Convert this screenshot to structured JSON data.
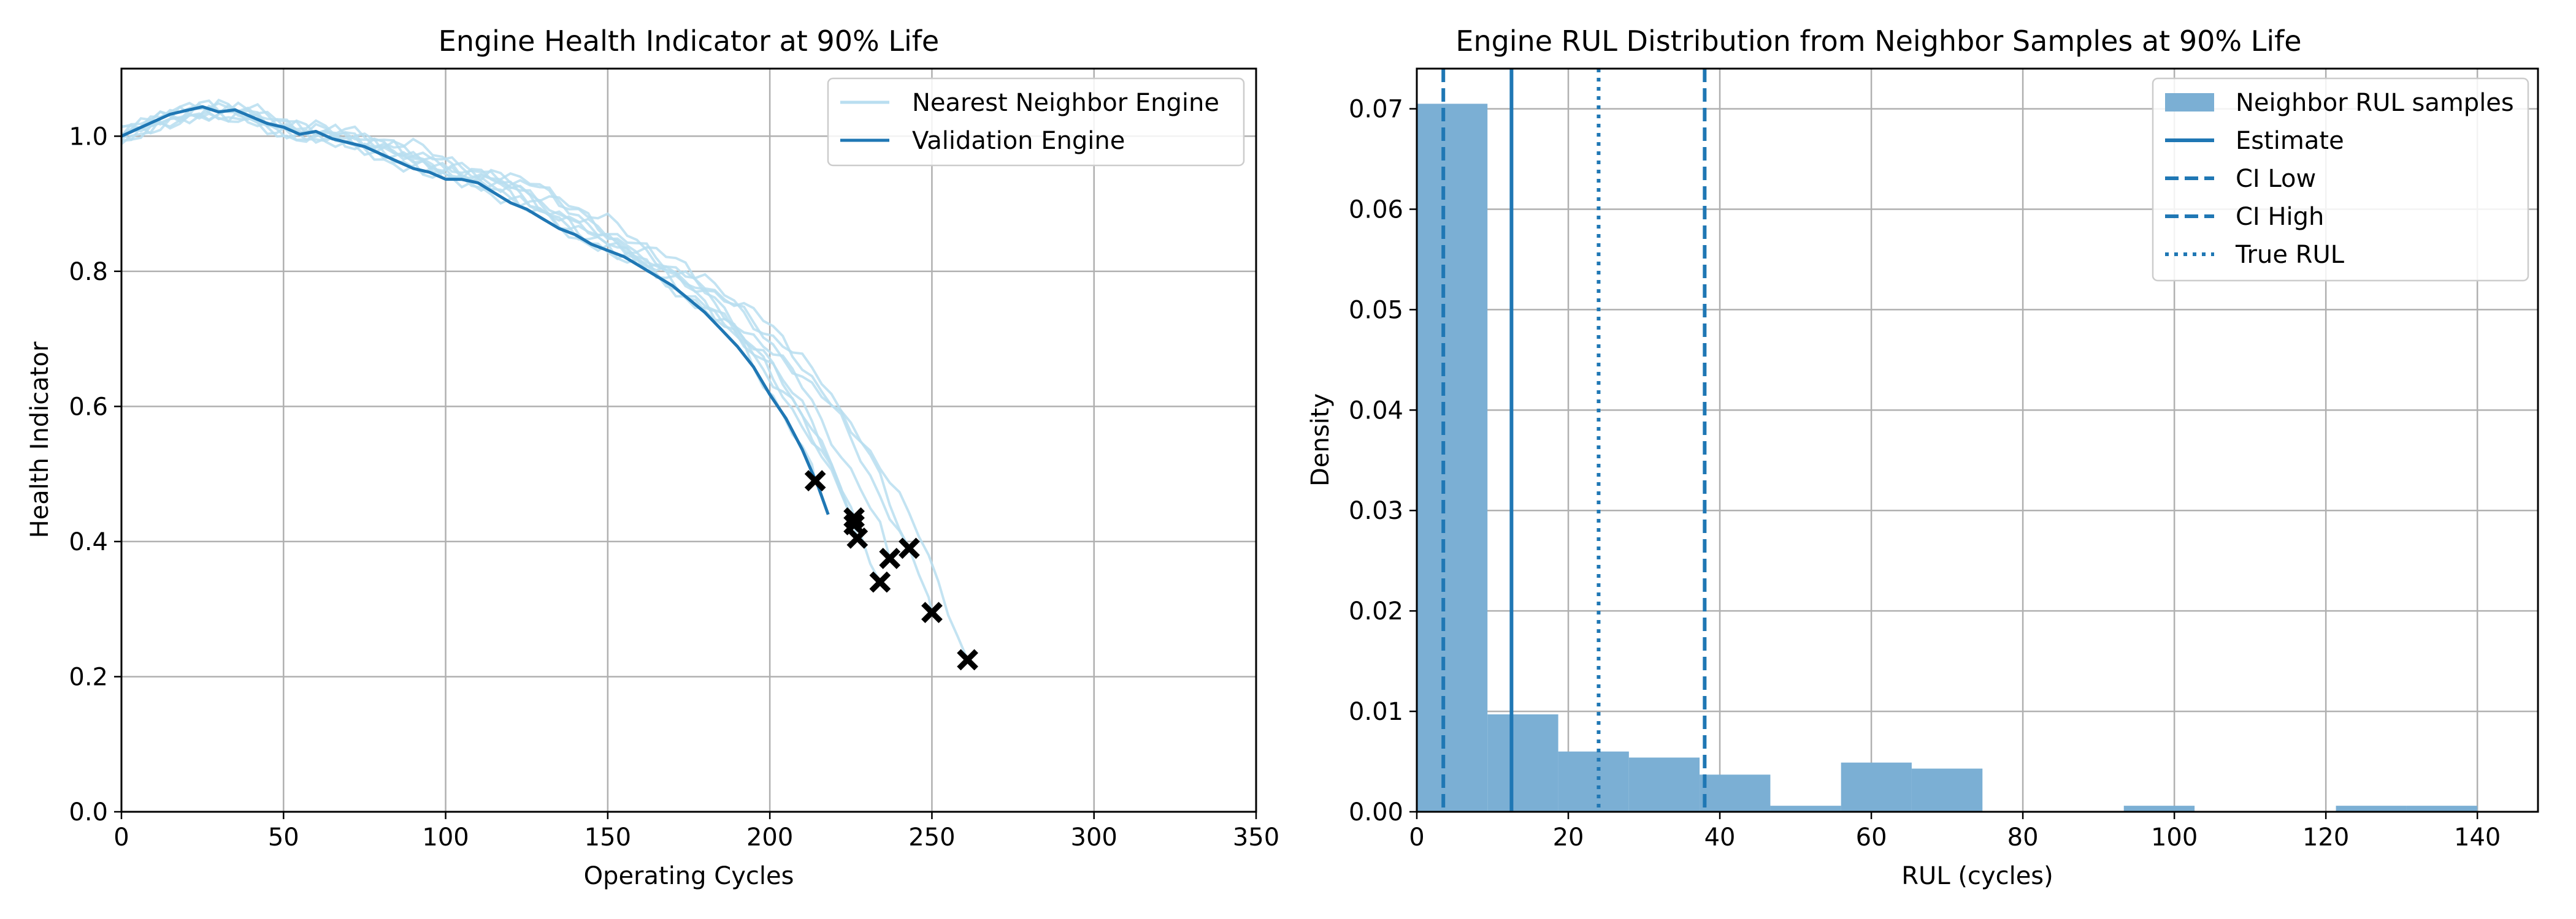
{
  "chart_data": [
    {
      "type": "line",
      "title": "Engine Health Indicator at 90% Life",
      "xlabel": "Operating Cycles",
      "ylabel": "Health Indicator",
      "xlim": [
        0,
        350
      ],
      "ylim": [
        0,
        1.1
      ],
      "xticks": [
        0,
        50,
        100,
        150,
        200,
        250,
        300,
        350
      ],
      "xtick_labels": [
        "0",
        "50",
        "100",
        "150",
        "200",
        "250",
        "300",
        "350"
      ],
      "yticks": [
        0.0,
        0.2,
        0.4,
        0.6,
        0.8,
        1.0
      ],
      "ytick_labels": [
        "0.0",
        "0.2",
        "0.4",
        "0.6",
        "0.8",
        "1.0"
      ],
      "grid": true,
      "legend_position": "top-right",
      "colors": {
        "neighbor": "#b9def0",
        "validation": "#1f77b4",
        "marker": "#000000"
      },
      "series": [
        {
          "name": "Validation Engine",
          "x": [
            0,
            5,
            10,
            15,
            20,
            25,
            30,
            35,
            40,
            45,
            50,
            55,
            60,
            65,
            70,
            75,
            80,
            85,
            90,
            95,
            100,
            105,
            110,
            115,
            120,
            125,
            130,
            135,
            140,
            145,
            150,
            155,
            160,
            165,
            170,
            175,
            180,
            185,
            190,
            195,
            200,
            205,
            210,
            215,
            218
          ],
          "y": [
            1.0,
            1.01,
            1.02,
            1.03,
            1.035,
            1.04,
            1.032,
            1.035,
            1.025,
            1.015,
            1.01,
            1.0,
            1.005,
            0.995,
            0.99,
            0.985,
            0.975,
            0.965,
            0.955,
            0.95,
            0.94,
            0.94,
            0.935,
            0.92,
            0.905,
            0.895,
            0.88,
            0.865,
            0.855,
            0.84,
            0.83,
            0.82,
            0.805,
            0.79,
            0.775,
            0.755,
            0.735,
            0.71,
            0.685,
            0.655,
            0.615,
            0.58,
            0.535,
            0.48,
            0.44
          ]
        }
      ],
      "neighbors": {
        "name": "Nearest Neighbor Engine",
        "end_points": [
          {
            "x": 214,
            "y": 0.49
          },
          {
            "x": 226,
            "y": 0.435
          },
          {
            "x": 226,
            "y": 0.425
          },
          {
            "x": 227,
            "y": 0.405
          },
          {
            "x": 234,
            "y": 0.34
          },
          {
            "x": 237,
            "y": 0.375
          },
          {
            "x": 243,
            "y": 0.39
          },
          {
            "x": 250,
            "y": 0.295
          },
          {
            "x": 261,
            "y": 0.225
          }
        ]
      }
    },
    {
      "type": "bar",
      "title": "Engine RUL Distribution from Neighbor Samples at 90% Life",
      "xlabel": "RUL (cycles)",
      "ylabel": "Density",
      "xlim": [
        0,
        148
      ],
      "ylim": [
        0,
        0.074
      ],
      "xticks": [
        0,
        20,
        40,
        60,
        80,
        100,
        120,
        140
      ],
      "xtick_labels": [
        "0",
        "20",
        "40",
        "60",
        "80",
        "100",
        "120",
        "140"
      ],
      "yticks": [
        0.0,
        0.01,
        0.02,
        0.03,
        0.04,
        0.05,
        0.06,
        0.07
      ],
      "ytick_labels": [
        "0.00",
        "0.01",
        "0.02",
        "0.03",
        "0.04",
        "0.05",
        "0.06",
        "0.07"
      ],
      "grid": true,
      "legend_position": "top-right",
      "colors": {
        "bars": "#7bafd4",
        "lines": "#1f77b4"
      },
      "histogram": {
        "name": "Neighbor RUL samples",
        "bin_edges": [
          0,
          9.33,
          18.67,
          28,
          37.33,
          46.67,
          56,
          65.33,
          74.67,
          84,
          93.33,
          102.67,
          112,
          121.33,
          130.67,
          140
        ],
        "density": [
          0.0705,
          0.0097,
          0.006,
          0.0054,
          0.0037,
          0.0006,
          0.0049,
          0.0043,
          0.0,
          0.0,
          0.0006,
          0.0,
          0.0,
          0.0006,
          0.0006
        ]
      },
      "vlines": [
        {
          "name": "Estimate",
          "x": 12.5,
          "style": "solid"
        },
        {
          "name": "CI Low",
          "x": 3.5,
          "style": "dashed"
        },
        {
          "name": "CI High",
          "x": 38,
          "style": "dashed"
        },
        {
          "name": "True RUL",
          "x": 24,
          "style": "dotted"
        }
      ]
    }
  ]
}
